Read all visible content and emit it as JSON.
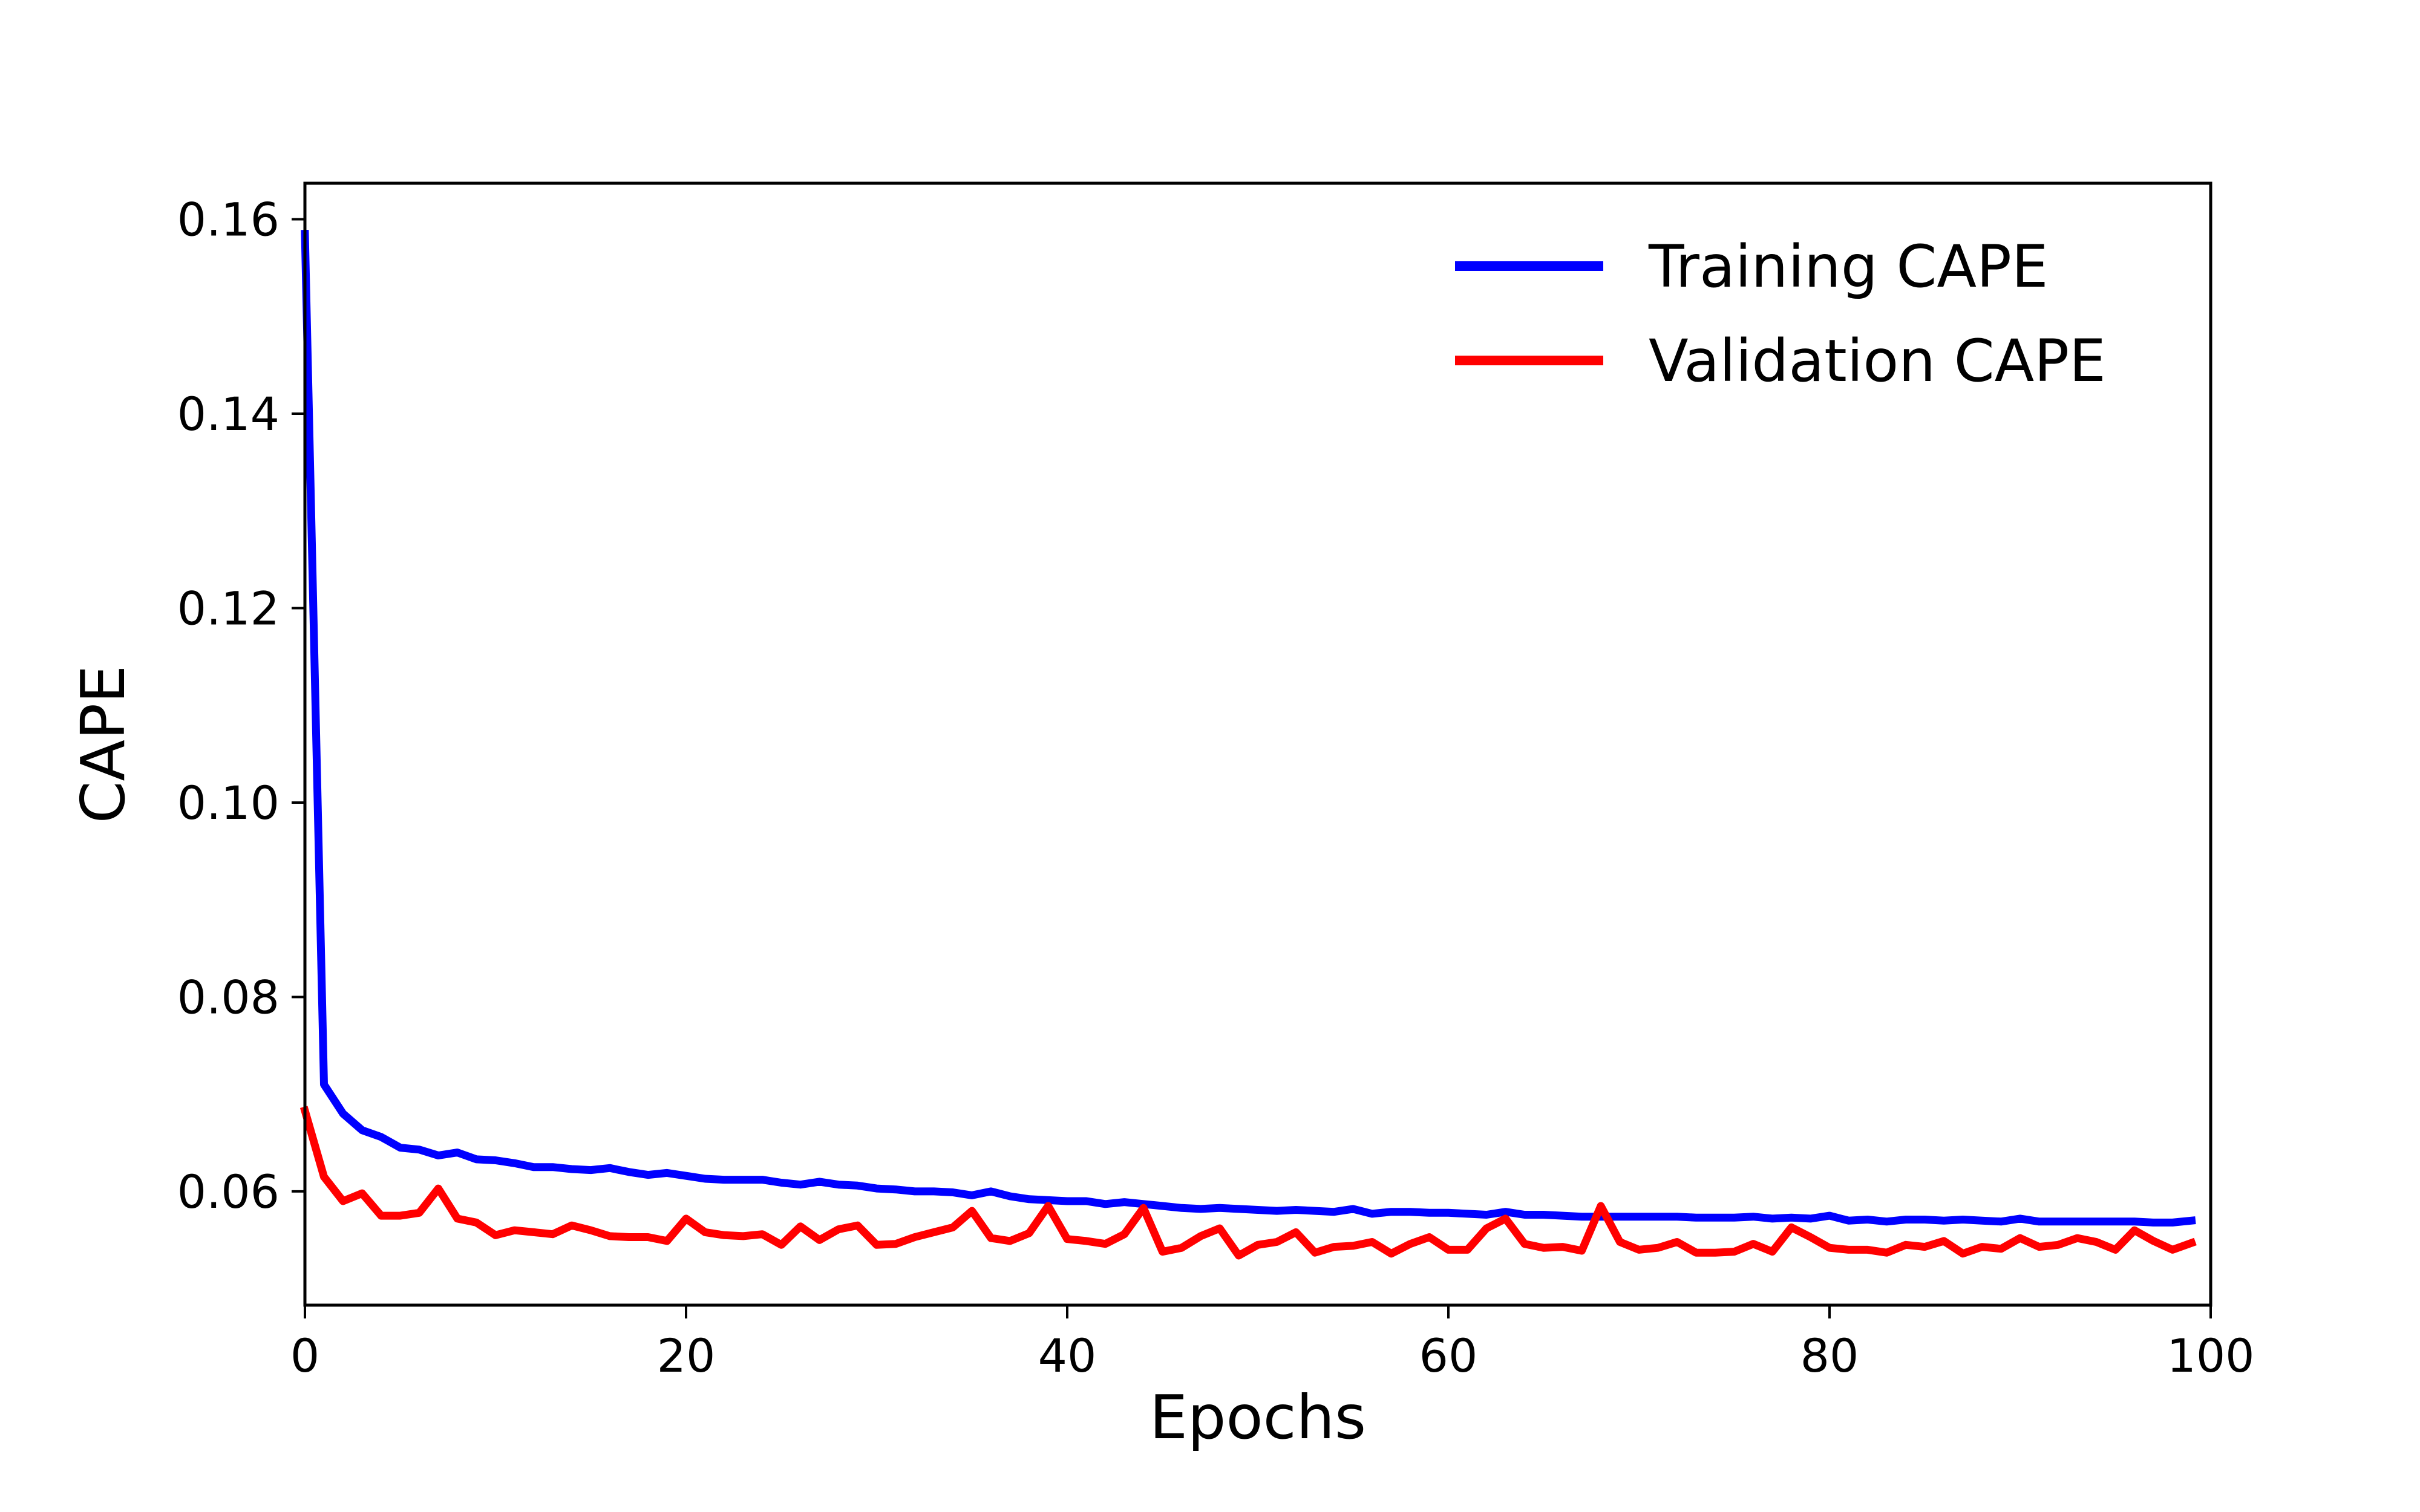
{
  "chart_data": {
    "type": "line",
    "title": "",
    "xlabel": "Epochs",
    "ylabel": "CAPE",
    "xlim": [
      0,
      100
    ],
    "ylim": [
      0.0483,
      0.1637
    ],
    "xticks": [
      0,
      20,
      40,
      60,
      80,
      100
    ],
    "xtick_labels": [
      "0",
      "20",
      "40",
      "60",
      "80",
      "100"
    ],
    "yticks": [
      0.06,
      0.08,
      0.1,
      0.12,
      0.14,
      0.16
    ],
    "ytick_labels": [
      "0.06",
      "0.08",
      "0.10",
      "0.12",
      "0.14",
      "0.16"
    ],
    "grid": false,
    "legend_position": "top-right",
    "x": [
      0,
      1,
      2,
      3,
      4,
      5,
      6,
      7,
      8,
      9,
      10,
      11,
      12,
      13,
      14,
      15,
      16,
      17,
      18,
      19,
      20,
      21,
      22,
      23,
      24,
      25,
      26,
      27,
      28,
      29,
      30,
      31,
      32,
      33,
      34,
      35,
      36,
      37,
      38,
      39,
      40,
      41,
      42,
      43,
      44,
      45,
      46,
      47,
      48,
      49,
      50,
      51,
      52,
      53,
      54,
      55,
      56,
      57,
      58,
      59,
      60,
      61,
      62,
      63,
      64,
      65,
      66,
      67,
      68,
      69,
      70,
      71,
      72,
      73,
      74,
      75,
      76,
      77,
      78,
      79,
      80,
      81,
      82,
      83,
      84,
      85,
      86,
      87,
      88,
      89,
      90,
      91,
      92,
      93,
      94,
      95,
      96,
      97,
      98,
      99
    ],
    "series": [
      {
        "name": "Training CAPE",
        "color": "#0000ff",
        "values": [
          0.1585,
          0.071,
          0.068,
          0.0663,
          0.0656,
          0.0645,
          0.0643,
          0.0637,
          0.064,
          0.0633,
          0.0632,
          0.0629,
          0.0625,
          0.0625,
          0.0623,
          0.0622,
          0.0624,
          0.062,
          0.0617,
          0.0619,
          0.0616,
          0.0613,
          0.0612,
          0.0612,
          0.0612,
          0.0609,
          0.0607,
          0.061,
          0.0607,
          0.0606,
          0.0603,
          0.0602,
          0.06,
          0.06,
          0.0599,
          0.0596,
          0.06,
          0.0595,
          0.0592,
          0.0591,
          0.059,
          0.059,
          0.0587,
          0.0589,
          0.0587,
          0.0585,
          0.0583,
          0.0582,
          0.0583,
          0.0582,
          0.0581,
          0.058,
          0.0581,
          0.058,
          0.0579,
          0.0582,
          0.0577,
          0.0579,
          0.0579,
          0.0578,
          0.0578,
          0.0577,
          0.0576,
          0.0579,
          0.0576,
          0.0576,
          0.0575,
          0.0574,
          0.0574,
          0.0574,
          0.0574,
          0.0574,
          0.0574,
          0.0573,
          0.0573,
          0.0573,
          0.0574,
          0.0572,
          0.0573,
          0.0572,
          0.0575,
          0.057,
          0.0571,
          0.0569,
          0.0571,
          0.0571,
          0.057,
          0.0571,
          0.057,
          0.0569,
          0.0572,
          0.0569,
          0.0569,
          0.0569,
          0.0569,
          0.0569,
          0.0569,
          0.0568,
          0.0568,
          0.057
        ]
      },
      {
        "name": "Validation CAPE",
        "color": "#ff0000",
        "values": [
          0.0683,
          0.0615,
          0.059,
          0.0598,
          0.0575,
          0.0575,
          0.0578,
          0.0603,
          0.0572,
          0.0568,
          0.0555,
          0.056,
          0.0558,
          0.0556,
          0.0565,
          0.056,
          0.0554,
          0.0553,
          0.0553,
          0.0549,
          0.0572,
          0.0558,
          0.0555,
          0.0554,
          0.0556,
          0.0545,
          0.0564,
          0.055,
          0.0561,
          0.0565,
          0.0545,
          0.0546,
          0.0553,
          0.0558,
          0.0563,
          0.058,
          0.0552,
          0.0549,
          0.0557,
          0.0585,
          0.0551,
          0.0549,
          0.0546,
          0.0556,
          0.0583,
          0.0538,
          0.0542,
          0.0554,
          0.0562,
          0.0534,
          0.0545,
          0.0548,
          0.0558,
          0.0537,
          0.0543,
          0.0544,
          0.0548,
          0.0536,
          0.0546,
          0.0553,
          0.054,
          0.054,
          0.0562,
          0.0572,
          0.0546,
          0.0542,
          0.0543,
          0.0539,
          0.0585,
          0.0548,
          0.054,
          0.0542,
          0.0548,
          0.0537,
          0.0537,
          0.0538,
          0.0546,
          0.0538,
          0.0563,
          0.0553,
          0.0542,
          0.054,
          0.054,
          0.0537,
          0.0545,
          0.0543,
          0.0549,
          0.0536,
          0.0543,
          0.0541,
          0.0552,
          0.0543,
          0.0545,
          0.0552,
          0.0548,
          0.054,
          0.056,
          0.0549,
          0.054,
          0.0547
        ]
      }
    ]
  }
}
